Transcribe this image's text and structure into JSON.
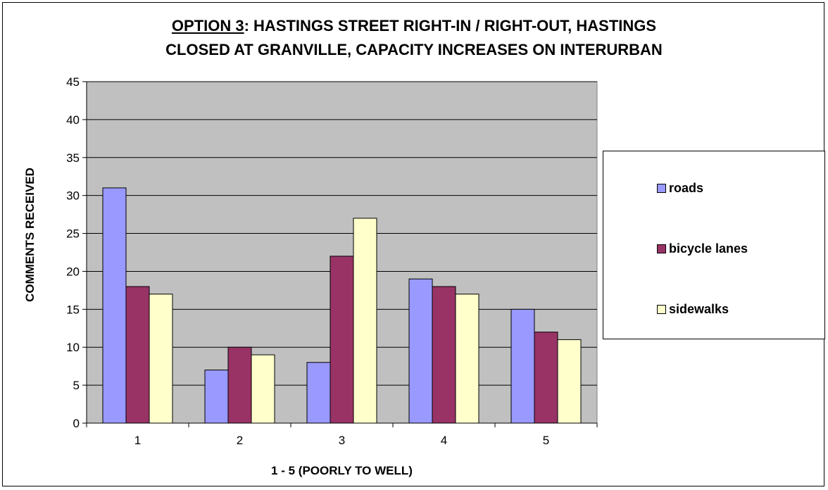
{
  "chart_data": {
    "type": "bar",
    "title_part1": "OPTION 3",
    "title_part2": ":  HASTINGS STREET RIGHT-IN / RIGHT-OUT, HASTINGS",
    "title_line2": "CLOSED AT GRANVILLE, CAPACITY INCREASES ON INTERURBAN",
    "xlabel": "1 - 5 (POORLY TO WELL)",
    "ylabel": "COMMENTS RECEIVED",
    "categories": [
      "1",
      "2",
      "3",
      "4",
      "5"
    ],
    "ylim": [
      0,
      45
    ],
    "yticks": [
      0,
      5,
      10,
      15,
      20,
      25,
      30,
      35,
      40,
      45
    ],
    "grid": true,
    "legend_position": "right",
    "plot_background": "#c0c0c0",
    "series": [
      {
        "name": "roads",
        "color": "#9999ff",
        "values": [
          31,
          7,
          8,
          19,
          15
        ]
      },
      {
        "name": "bicycle lanes",
        "color": "#993366",
        "values": [
          18,
          10,
          22,
          18,
          12
        ]
      },
      {
        "name": "sidewalks",
        "color": "#ffffcc",
        "values": [
          17,
          9,
          27,
          17,
          11
        ]
      }
    ]
  }
}
